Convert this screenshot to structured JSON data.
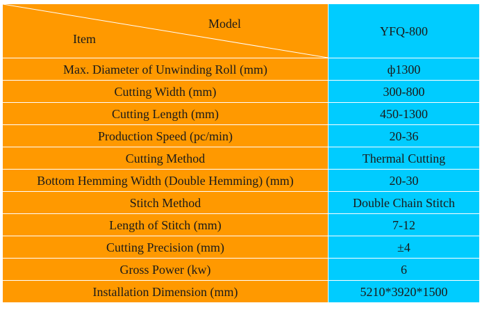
{
  "header": {
    "model_label": "Model",
    "item_label": "Item",
    "model_name": "YFQ-800"
  },
  "rows": [
    {
      "item": "Max. Diameter of Unwinding Roll (mm)",
      "value": "ф1300"
    },
    {
      "item": "Cutting Width (mm)",
      "value": "300-800"
    },
    {
      "item": "Cutting Length (mm)",
      "value": "450-1300"
    },
    {
      "item": "Production Speed (pc/min)",
      "value": "20-36"
    },
    {
      "item": "Cutting Method",
      "value": "Thermal Cutting"
    },
    {
      "item": "Bottom Hemming Width (Double Hemming) (mm)",
      "value": "20-30"
    },
    {
      "item": "Stitch Method",
      "value": "Double Chain Stitch"
    },
    {
      "item": "Length of Stitch (mm)",
      "value": "7-12"
    },
    {
      "item": "Cutting Precision (mm)",
      "value": "±4"
    },
    {
      "item": "Gross Power (kw)",
      "value": "6"
    },
    {
      "item": "Installation Dimension (mm)",
      "value": "5210*3920*1500"
    }
  ],
  "colors": {
    "item_bg": "#ff9900",
    "value_bg": "#00ccff",
    "border": "#ffffff"
  }
}
